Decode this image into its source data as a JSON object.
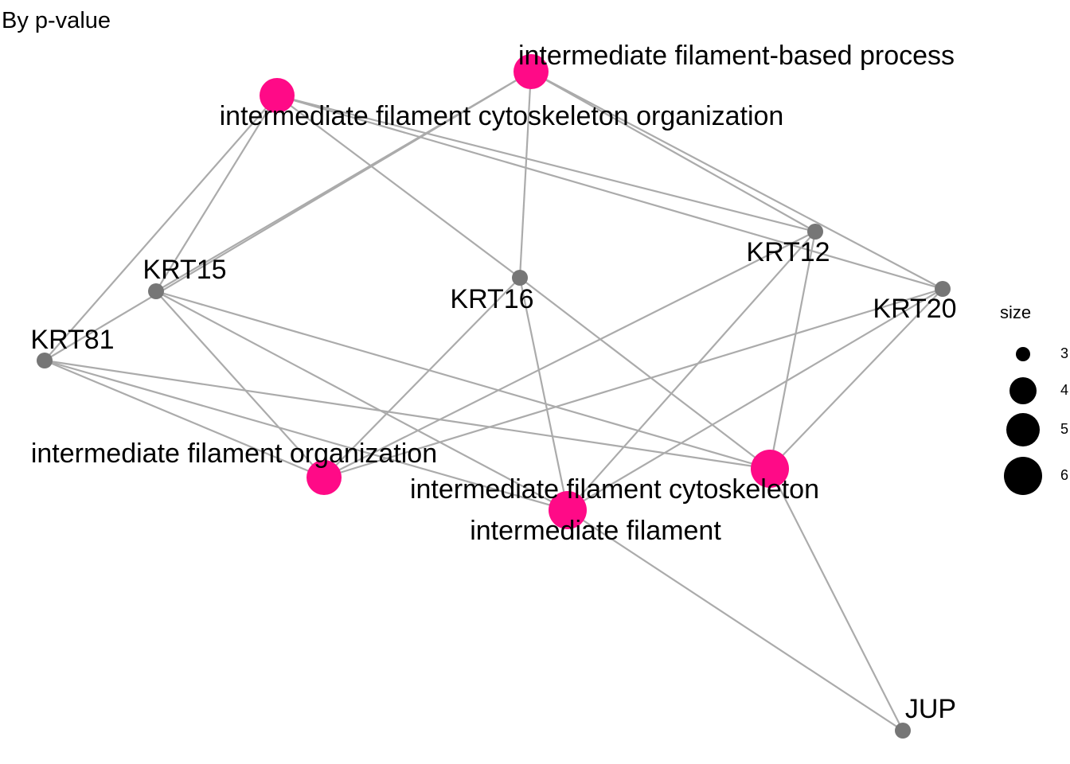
{
  "title": "By p-value",
  "colors": {
    "term_node": "#ff0a87",
    "gene_node": "#767676",
    "edge": "#ababab",
    "legend_dot": "#000000"
  },
  "nodes": [
    {
      "id": "ifbp",
      "label": "intermediate filament-based process",
      "kind": "term"
    },
    {
      "id": "ifco",
      "label": "intermediate filament cytoskeleton organization",
      "kind": "term"
    },
    {
      "id": "ifo",
      "label": "intermediate filament organization",
      "kind": "term"
    },
    {
      "id": "ifc",
      "label": "intermediate filament cytoskeleton",
      "kind": "term"
    },
    {
      "id": "if",
      "label": "intermediate filament",
      "kind": "term"
    },
    {
      "id": "KRT15",
      "label": "KRT15",
      "kind": "gene"
    },
    {
      "id": "KRT16",
      "label": "KRT16",
      "kind": "gene"
    },
    {
      "id": "KRT12",
      "label": "KRT12",
      "kind": "gene"
    },
    {
      "id": "KRT20",
      "label": "KRT20",
      "kind": "gene"
    },
    {
      "id": "KRT81",
      "label": "KRT81",
      "kind": "gene"
    },
    {
      "id": "JUP",
      "label": "JUP",
      "kind": "gene"
    }
  ],
  "edges": [
    [
      "ifbp",
      "KRT15"
    ],
    [
      "ifbp",
      "KRT16"
    ],
    [
      "ifbp",
      "KRT12"
    ],
    [
      "ifbp",
      "KRT20"
    ],
    [
      "ifbp",
      "KRT81"
    ],
    [
      "ifco",
      "KRT15"
    ],
    [
      "ifco",
      "KRT16"
    ],
    [
      "ifco",
      "KRT12"
    ],
    [
      "ifco",
      "KRT20"
    ],
    [
      "ifco",
      "KRT81"
    ],
    [
      "ifo",
      "KRT15"
    ],
    [
      "ifo",
      "KRT16"
    ],
    [
      "ifo",
      "KRT12"
    ],
    [
      "ifo",
      "KRT20"
    ],
    [
      "ifo",
      "KRT81"
    ],
    [
      "ifc",
      "KRT15"
    ],
    [
      "ifc",
      "KRT16"
    ],
    [
      "ifc",
      "KRT12"
    ],
    [
      "ifc",
      "KRT20"
    ],
    [
      "ifc",
      "KRT81"
    ],
    [
      "ifc",
      "JUP"
    ],
    [
      "if",
      "KRT15"
    ],
    [
      "if",
      "KRT16"
    ],
    [
      "if",
      "KRT12"
    ],
    [
      "if",
      "KRT20"
    ],
    [
      "if",
      "KRT81"
    ],
    [
      "if",
      "JUP"
    ]
  ],
  "legend": {
    "title": "size",
    "items": [
      "3",
      "4",
      "5",
      "6"
    ]
  }
}
